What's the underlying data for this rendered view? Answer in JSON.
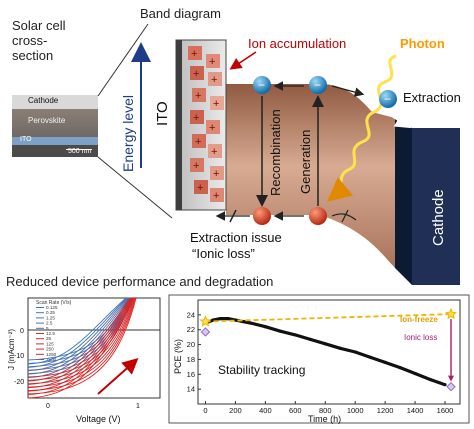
{
  "band_section": {
    "solar_cell_label": [
      "Solar cell",
      "cross-",
      "section"
    ],
    "band_diagram_title": "Band diagram",
    "energy_level_label": "Energy level",
    "ito_label": "ITO",
    "cathode_label": "Cathode",
    "ion_accumulation_label": "Ion accumulation",
    "photon_label": "Photon",
    "extraction_label": "Extraction",
    "recombination_label": "Recombination",
    "generation_label": "Generation",
    "extraction_issue_label": [
      "Extraction issue",
      "“Ionic loss”"
    ],
    "micrograph": {
      "cathode": "Cathode",
      "perovskite": "Perovskite",
      "ito": "ITO",
      "scale_bar": "500 nm"
    },
    "colors": {
      "title_blue": "#1f3c88",
      "ion_red": "#c00000",
      "photon_orange": "#ff9900",
      "electron_blue": "#1e88c8",
      "hole_red": "#d93a1b",
      "band_brown": "#c08a6e",
      "cathode_navy": "#1f2f55"
    }
  },
  "bottom_section": {
    "title": "Reduced device performance and degradation"
  },
  "jv_chart": {
    "ylabel": "J (mAcm⁻²)",
    "xlabel": "Voltage (V)",
    "legend_title": "Scan Rate (V/s)",
    "legend_items": [
      "0.125",
      "0.25",
      "1.25",
      "2.5",
      "5",
      "12.5",
      "25",
      "125",
      "250",
      "1250",
      "2500"
    ],
    "x_ticks": [
      "0",
      "1"
    ],
    "y_ticks": [
      "0",
      "-10",
      "-20"
    ]
  },
  "chart_data": {
    "type": "scatter",
    "title": "",
    "xlabel": "Time (h)",
    "ylabel": "PCE (%)",
    "xlim": [
      -50,
      1700
    ],
    "ylim": [
      12,
      26
    ],
    "x_ticks": [
      0,
      200,
      400,
      600,
      800,
      1000,
      1200,
      1400,
      1600
    ],
    "y_ticks": [
      14,
      16,
      18,
      20,
      22,
      24
    ],
    "series": [
      {
        "name": "",
        "x": [
          0,
          50,
          100,
          150,
          200,
          250,
          300,
          400,
          500,
          600,
          700,
          800,
          900,
          1000,
          1100,
          1200,
          1300,
          1400,
          1500,
          1600
        ],
        "y": [
          22.9,
          23.3,
          23.5,
          23.5,
          23.3,
          23.1,
          22.9,
          22.4,
          21.8,
          21.3,
          20.7,
          20.1,
          19.5,
          19.0,
          18.3,
          17.6,
          16.9,
          16.1,
          15.3,
          14.6
        ]
      },
      {
        "name": "Ion-freeze",
        "x": [
          0,
          1640
        ],
        "y": [
          23.1,
          24.1
        ]
      }
    ],
    "annotations": [
      "Ion-freeze",
      "Ionic loss",
      "Stability tracking"
    ],
    "grid": false,
    "colors": {
      "data": "#111111",
      "ion_freeze": "#f0b400",
      "ionic_loss": "#a0206e",
      "endpoint": "#8a6bbf"
    }
  }
}
